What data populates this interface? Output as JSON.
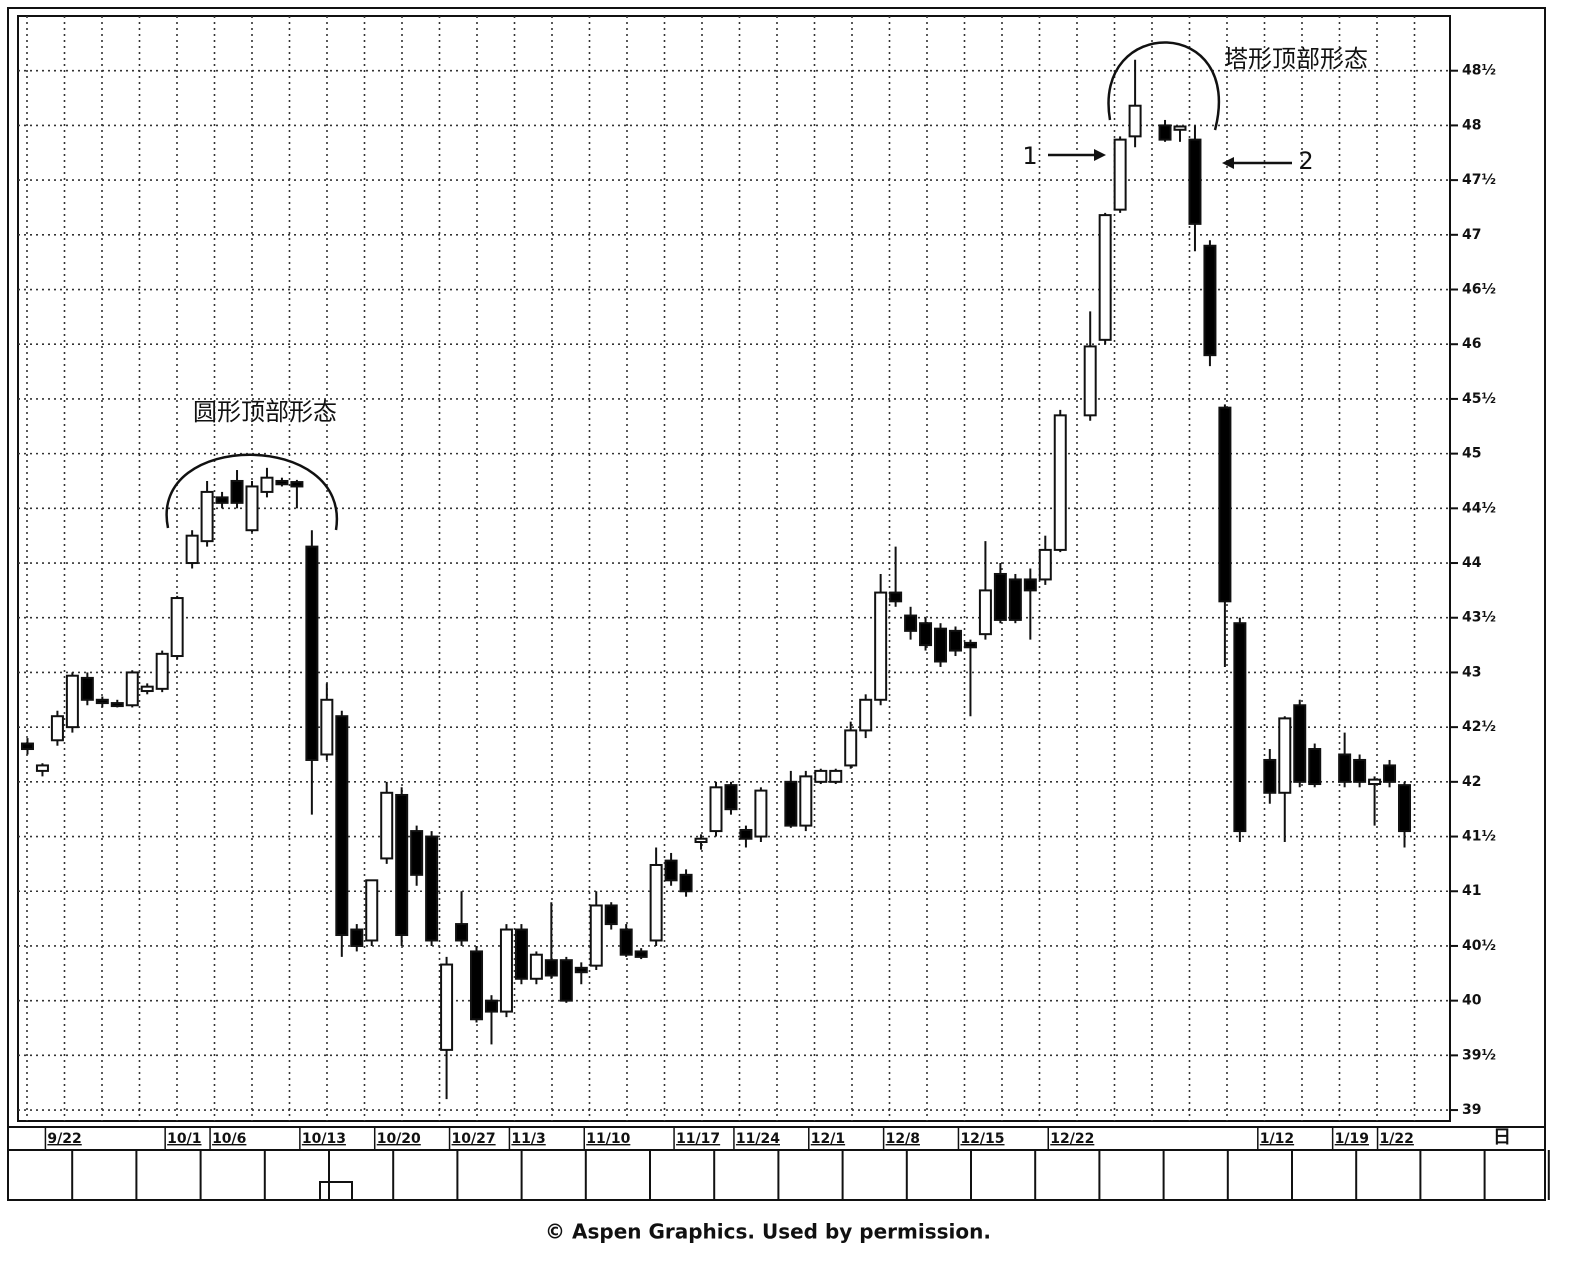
{
  "chart_data": {
    "type": "candlestick",
    "annotations": [
      "圆形顶部形态",
      "塔形顶部形态",
      "1",
      "2"
    ],
    "x_unit_label": "日",
    "categories": [
      null,
      null,
      "9/22",
      null,
      null,
      null,
      null,
      null,
      null,
      null,
      "10/1",
      null,
      null,
      "10/6",
      null,
      null,
      null,
      null,
      null,
      "10/13",
      null,
      null,
      null,
      null,
      "10/20",
      null,
      null,
      null,
      null,
      "10/27",
      null,
      null,
      null,
      "11/3",
      null,
      null,
      null,
      null,
      "11/10",
      null,
      null,
      null,
      null,
      null,
      "11/17",
      null,
      null,
      null,
      "11/24",
      null,
      null,
      null,
      null,
      "12/1",
      null,
      null,
      null,
      null,
      "12/8",
      null,
      null,
      null,
      null,
      "12/15",
      null,
      null,
      null,
      null,
      null,
      "12/22",
      null,
      null,
      null,
      null,
      null,
      null,
      null,
      null,
      null,
      null,
      null,
      null,
      null,
      "1/12",
      null,
      null,
      null,
      null,
      "1/19",
      null,
      null,
      "1/22",
      null
    ],
    "open": [
      42.35,
      42.1,
      42.38,
      42.5,
      42.95,
      42.75,
      42.72,
      42.7,
      42.83,
      42.85,
      43.15,
      44.0,
      44.2,
      44.6,
      44.75,
      44.3,
      44.65,
      44.75,
      44.74,
      44.15,
      42.25,
      42.6,
      40.65,
      40.55,
      41.3,
      41.88,
      41.55,
      41.5,
      39.55,
      40.7,
      40.45,
      40.0,
      39.9,
      40.65,
      40.2,
      40.37,
      40.37,
      40.3,
      40.32,
      40.87,
      40.65,
      40.45,
      40.55,
      41.28,
      41.15,
      41.45,
      41.55,
      41.97,
      41.56,
      41.5,
      null,
      42.0,
      41.6,
      42.0,
      42.0,
      42.15,
      42.47,
      42.75,
      43.73,
      43.52,
      43.45,
      43.4,
      43.38,
      43.27,
      43.35,
      43.9,
      43.85,
      43.85,
      43.85,
      44.12,
      null,
      45.35,
      46.04,
      47.23,
      47.9,
      null,
      48.0,
      47.96,
      47.87,
      46.9,
      45.42,
      43.45,
      null,
      42.2,
      41.9,
      42.7,
      42.3,
      null,
      42.25,
      42.2,
      41.98,
      42.15,
      41.97
    ],
    "high": [
      42.4,
      42.17,
      42.65,
      43.0,
      43.0,
      42.78,
      42.75,
      43.02,
      42.9,
      43.2,
      43.7,
      44.3,
      44.75,
      44.65,
      44.85,
      44.75,
      44.87,
      44.78,
      44.76,
      44.3,
      42.9,
      42.65,
      40.7,
      41.1,
      42.0,
      41.95,
      41.6,
      41.55,
      40.4,
      41.0,
      40.5,
      40.05,
      40.7,
      40.7,
      40.45,
      40.9,
      40.4,
      40.35,
      41.0,
      40.9,
      40.7,
      40.48,
      41.4,
      41.35,
      41.2,
      41.52,
      42.0,
      42.0,
      41.6,
      41.95,
      null,
      42.1,
      42.1,
      42.12,
      42.12,
      42.55,
      42.8,
      43.9,
      44.15,
      43.6,
      43.5,
      43.45,
      43.42,
      43.3,
      44.2,
      44.0,
      43.9,
      43.95,
      44.25,
      45.4,
      null,
      46.3,
      47.2,
      47.9,
      48.6,
      null,
      48.05,
      48.0,
      48.0,
      46.95,
      45.45,
      43.5,
      null,
      42.3,
      42.6,
      42.75,
      42.35,
      null,
      42.45,
      42.25,
      42.05,
      42.2,
      42.0
    ],
    "low": [
      42.25,
      42.05,
      42.33,
      42.45,
      42.7,
      42.68,
      42.68,
      42.68,
      42.8,
      42.82,
      43.12,
      43.95,
      44.15,
      44.5,
      44.5,
      44.28,
      44.6,
      44.7,
      44.5,
      41.7,
      42.2,
      40.4,
      40.45,
      40.5,
      41.25,
      40.5,
      41.05,
      40.5,
      39.1,
      40.5,
      39.8,
      39.6,
      39.85,
      40.15,
      40.15,
      40.2,
      39.98,
      40.15,
      40.28,
      40.65,
      40.4,
      40.38,
      40.5,
      41.05,
      40.95,
      41.38,
      41.5,
      41.7,
      41.4,
      41.45,
      null,
      41.58,
      41.55,
      41.98,
      41.98,
      42.12,
      42.4,
      42.7,
      43.6,
      43.3,
      43.2,
      43.05,
      43.15,
      42.6,
      43.3,
      43.45,
      43.45,
      43.3,
      43.8,
      44.1,
      null,
      45.3,
      46.0,
      47.2,
      47.8,
      null,
      47.85,
      47.85,
      46.85,
      45.8,
      43.05,
      41.45,
      null,
      41.8,
      41.45,
      41.95,
      41.95,
      null,
      41.95,
      41.95,
      41.6,
      41.95,
      41.4
    ],
    "close": [
      42.3,
      42.15,
      42.6,
      42.97,
      42.75,
      42.72,
      42.7,
      43.0,
      42.87,
      43.17,
      43.68,
      44.25,
      44.65,
      44.55,
      44.55,
      44.7,
      44.78,
      44.72,
      44.7,
      42.2,
      42.75,
      40.6,
      40.5,
      41.1,
      41.9,
      40.6,
      41.15,
      40.55,
      40.33,
      40.55,
      39.83,
      39.9,
      40.65,
      40.2,
      40.42,
      40.23,
      40.0,
      40.26,
      40.87,
      40.7,
      40.42,
      40.4,
      41.24,
      41.1,
      41.0,
      41.48,
      41.95,
      41.75,
      41.48,
      41.92,
      null,
      41.6,
      42.05,
      42.1,
      42.1,
      42.47,
      42.75,
      43.73,
      43.65,
      43.38,
      43.25,
      43.1,
      43.2,
      43.23,
      43.75,
      43.48,
      43.48,
      43.75,
      44.12,
      45.35,
      null,
      45.98,
      47.18,
      47.87,
      48.18,
      null,
      47.87,
      47.99,
      47.1,
      45.9,
      43.65,
      41.55,
      null,
      41.9,
      42.58,
      42.0,
      41.98,
      null,
      42.0,
      42.0,
      42.02,
      42.0,
      41.55
    ],
    "up_color": "#ffffff",
    "down_color": "#000000",
    "ylim": [
      38.9,
      49.0
    ],
    "yticks": [
      39,
      {
        "value": 39.5,
        "label": "39½"
      },
      40,
      {
        "value": 40.5,
        "label": "40½"
      },
      41,
      {
        "value": 41.5,
        "label": "41½"
      },
      42,
      {
        "value": 42.5,
        "label": "42½"
      },
      43,
      {
        "value": 43.5,
        "label": "43½"
      },
      44,
      {
        "value": 44.5,
        "label": "44½"
      },
      45,
      {
        "value": 45.5,
        "label": "45½"
      },
      46,
      {
        "value": 46.5,
        "label": "46½"
      },
      47,
      {
        "value": 47.5,
        "label": "47½"
      },
      48,
      {
        "value": 48.5,
        "label": "48½"
      }
    ],
    "grid": true
  },
  "footer": "© Aspen Graphics. Used by permission."
}
